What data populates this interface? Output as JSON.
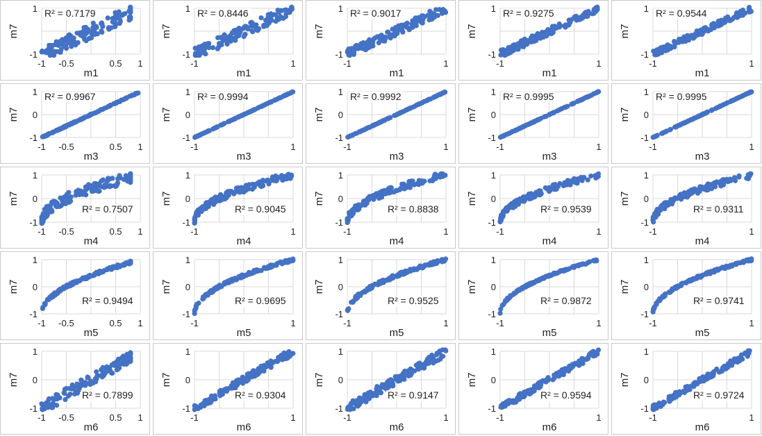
{
  "chart_data": {
    "type": "scatter",
    "grid": true,
    "series_color": "#4472C4",
    "frame_color": "#c8c8c8",
    "gridline_color": "#d9d9d9",
    "y_label": "m7",
    "rows": [
      {
        "xlabel": "m1",
        "r2": [
          "R² = 0.7179",
          "R² = 0.8446",
          "R² = 0.9017",
          "R² = 0.9275",
          "R² = 0.9544"
        ],
        "relation": "noisy-linear",
        "noise": [
          0.32,
          0.25,
          0.2,
          0.16,
          0.13
        ],
        "label_pos": "top-left"
      },
      {
        "xlabel": "m3",
        "r2": [
          "R² = 0.9967",
          "R² = 0.9994",
          "R² = 0.9992",
          "R² = 0.9995",
          "R² = 0.9995"
        ],
        "relation": "linear",
        "noise": [
          0.02,
          0.01,
          0.01,
          0.01,
          0.01
        ],
        "label_pos": "top-left"
      },
      {
        "xlabel": "m4",
        "r2": [
          "R² = 0.7507",
          "R² = 0.9045",
          "R² = 0.8838",
          "R² = 0.9539",
          "R² = 0.9311"
        ],
        "relation": "concave",
        "noise": [
          0.22,
          0.14,
          0.15,
          0.12,
          0.13
        ],
        "label_pos": "bottom-right"
      },
      {
        "xlabel": "m5",
        "r2": [
          "R² = 0.9494",
          "R² = 0.9695",
          "R² = 0.9525",
          "R² = 0.9872",
          "R² = 0.9741"
        ],
        "relation": "concave",
        "noise": [
          0.05,
          0.05,
          0.06,
          0.03,
          0.04
        ],
        "label_pos": "bottom-right"
      },
      {
        "xlabel": "m6",
        "r2": [
          "R² = 0.7899",
          "R² = 0.9304",
          "R² = 0.9147",
          "R² = 0.9594",
          "R² = 0.9724"
        ],
        "relation": "noisy-linear",
        "noise": [
          0.2,
          0.13,
          0.16,
          0.11,
          0.1
        ],
        "label_pos": "bottom-right"
      }
    ],
    "xticks_first_col": [
      "-1",
      "-0.5",
      "0.5",
      "1"
    ],
    "xticks_other": [
      "-1",
      "1"
    ],
    "yticks_row1": [
      "1",
      "-1"
    ],
    "yticks_other": [
      "1",
      "0",
      "-1"
    ],
    "xlim": [
      -1,
      1
    ],
    "ylim": [
      -1,
      1
    ]
  }
}
